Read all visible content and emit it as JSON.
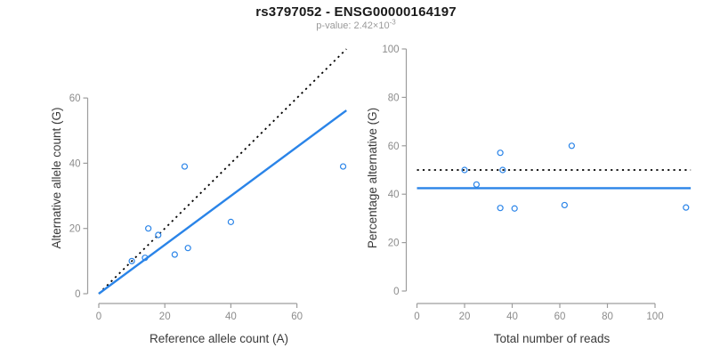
{
  "header": {
    "title": "rs3797052 - ENSG00000164197",
    "pvalue_label": "p-value: 2.42×10",
    "pvalue_exponent": "-3"
  },
  "colors": {
    "accent_blue": "#2a84e8",
    "dotted_black": "#000000",
    "axis_line_gray": "#9d9d9d",
    "tick_label_gray": "#8c8c8c",
    "axis_title_dark": "#3a3a3a"
  },
  "chart_data": [
    {
      "id": "allele-counts",
      "type": "scatter",
      "title": "",
      "xlabel": "Reference allele count (A)",
      "ylabel": "Alternative allele count (G)",
      "xticks": [
        0,
        20,
        40,
        60
      ],
      "yticks": [
        0,
        20,
        40,
        60
      ],
      "xlim": [
        0,
        75
      ],
      "ylim": [
        0,
        75
      ],
      "grid": false,
      "legend": "none",
      "points": [
        [
          10,
          10
        ],
        [
          14,
          11
        ],
        [
          15,
          20
        ],
        [
          18,
          18
        ],
        [
          23,
          12
        ],
        [
          26,
          39
        ],
        [
          27,
          14
        ],
        [
          40,
          22
        ],
        [
          74,
          39
        ]
      ],
      "lines": [
        {
          "name": "identity-line",
          "style": "dotted",
          "color": "#000000",
          "x1": 0,
          "y1": 0,
          "x2": 75,
          "y2": 75
        },
        {
          "name": "fit-line",
          "style": "solid",
          "color": "#2a84e8",
          "x1": 0,
          "y1": 0,
          "x2": 75,
          "y2": 56.2
        }
      ]
    },
    {
      "id": "percentage-alternative",
      "type": "scatter",
      "title": "",
      "xlabel": "Total number of reads",
      "ylabel": "Percentage alternative (G)",
      "xticks": [
        0,
        20,
        40,
        60,
        80,
        100
      ],
      "yticks": [
        0,
        20,
        40,
        60,
        80,
        100
      ],
      "xlim": [
        0,
        115
      ],
      "ylim": [
        0,
        100
      ],
      "grid": false,
      "legend": "none",
      "points": [
        [
          20,
          50
        ],
        [
          25,
          44
        ],
        [
          35,
          57.1
        ],
        [
          35,
          34.3
        ],
        [
          36,
          50
        ],
        [
          41,
          34.1
        ],
        [
          62,
          35.5
        ],
        [
          65,
          60
        ],
        [
          113,
          34.5
        ]
      ],
      "lines": [
        {
          "name": "null-line-50pct",
          "style": "dotted",
          "color": "#000000",
          "x1": 0,
          "y1": 50,
          "x2": 115,
          "y2": 50
        },
        {
          "name": "fit-line",
          "style": "solid",
          "color": "#2a84e8",
          "x1": 0,
          "y1": 42.5,
          "x2": 115,
          "y2": 42.5
        }
      ]
    }
  ]
}
